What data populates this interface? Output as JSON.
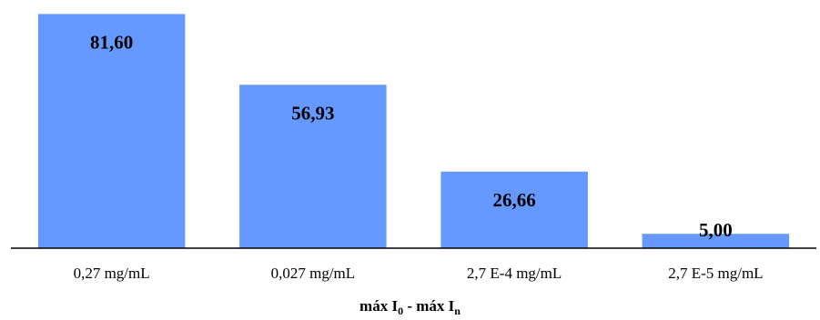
{
  "chart_data": {
    "type": "bar",
    "categories": [
      "0,27 mg/mL",
      "0,027 mg/mL",
      "2,7 E-4 mg/mL",
      "2,7 E-5 mg/mL"
    ],
    "values": [
      81.6,
      56.93,
      26.66,
      5.0
    ],
    "data_labels": [
      "81,60",
      "56,93",
      "26,66",
      "5,00"
    ],
    "xlabel": {
      "part1": "máx I",
      "sub1": "0",
      "separator": " - máx I",
      "sub2": "n"
    },
    "ylabel": "",
    "ylim": [
      0,
      83
    ],
    "bar_color": "#6699ff",
    "axis_color": "#000000",
    "grid": false,
    "legend": "none"
  }
}
